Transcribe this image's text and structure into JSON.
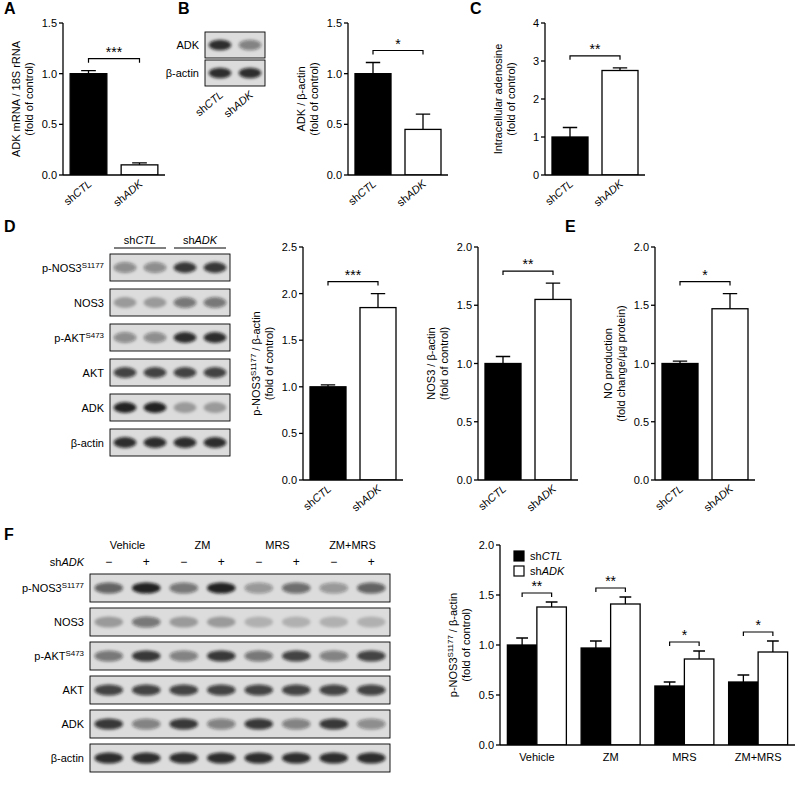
{
  "chart_data": [
    {
      "panel": "A",
      "type": "bar",
      "ylabel": [
        "ADK mRNA / 18S rRNA",
        "(fold of control)"
      ],
      "categories": [
        "shCTL",
        "shADK"
      ],
      "values": [
        1.0,
        0.1
      ],
      "errors": [
        0.03,
        0.02
      ],
      "colors": [
        "#000000",
        "#ffffff"
      ],
      "ylim": [
        0,
        1.5
      ],
      "yticks": [
        {
          "value": 0,
          "label": "0.0"
        },
        0.5,
        {
          "value": 1,
          "label": "1.0"
        },
        1.5
      ],
      "significance": "***"
    },
    {
      "panel": "B",
      "type": "bar",
      "ylabel": [
        "ADK / β-actin",
        "(fold of control)"
      ],
      "categories": [
        "shCTL",
        "shADK"
      ],
      "values": [
        1.0,
        0.45
      ],
      "errors": [
        0.11,
        0.15
      ],
      "colors": [
        "#000000",
        "#ffffff"
      ],
      "ylim": [
        0,
        1.5
      ],
      "yticks": [
        {
          "value": 0,
          "label": "0.0"
        },
        0.5,
        {
          "value": 1,
          "label": "1.0"
        },
        1.5
      ],
      "significance": "*"
    },
    {
      "panel": "C",
      "type": "bar",
      "ylabel": [
        "Intracellular adenosine",
        "(fold of control)"
      ],
      "categories": [
        "shCTL",
        "shADK"
      ],
      "values": [
        1.0,
        2.75
      ],
      "errors": [
        0.25,
        0.07
      ],
      "colors": [
        "#000000",
        "#ffffff"
      ],
      "ylim": [
        0,
        4
      ],
      "yticks": [
        0,
        1,
        2,
        3,
        4
      ],
      "significance": "**"
    },
    {
      "panel": "D",
      "type": "bar",
      "ylabel": [
        [
          "p-NOS3",
          {
            "sup": "S1177"
          },
          " / β-actin"
        ],
        "(fold of control)"
      ],
      "categories": [
        "shCTL",
        "shADK"
      ],
      "values": [
        1.0,
        1.85
      ],
      "errors": [
        0.02,
        0.15
      ],
      "colors": [
        "#000000",
        "#ffffff"
      ],
      "ylim": [
        0,
        2.5
      ],
      "yticks": [
        {
          "value": 0,
          "label": "0.0"
        },
        0.5,
        {
          "value": 1,
          "label": "1.0"
        },
        1.5,
        {
          "value": 2,
          "label": "2.0"
        },
        2.5
      ],
      "significance": "***"
    },
    {
      "type": "bar",
      "ylabel": [
        "NOS3 / β-actin",
        "(fold of control)"
      ],
      "categories": [
        "shCTL",
        "shADK"
      ],
      "values": [
        1.0,
        1.55
      ],
      "errors": [
        0.06,
        0.14
      ],
      "colors": [
        "#000000",
        "#ffffff"
      ],
      "ylim": [
        0,
        2
      ],
      "yticks": [
        {
          "value": 0,
          "label": "0.0"
        },
        0.5,
        {
          "value": 1,
          "label": "1.0"
        },
        1.5,
        {
          "value": 2,
          "label": "2.0"
        }
      ],
      "significance": "**"
    },
    {
      "panel": "E",
      "type": "bar",
      "ylabel": [
        "NO production",
        "(fold change/µg protein)"
      ],
      "categories": [
        "shCTL",
        "shADK"
      ],
      "values": [
        1.0,
        1.47
      ],
      "errors": [
        0.02,
        0.13
      ],
      "colors": [
        "#000000",
        "#ffffff"
      ],
      "ylim": [
        0,
        2
      ],
      "yticks": [
        {
          "value": 0,
          "label": "0.0"
        },
        0.5,
        {
          "value": 1,
          "label": "1.0"
        },
        1.5,
        {
          "value": 2,
          "label": "2.0"
        }
      ],
      "significance": "*"
    },
    {
      "panel": "F",
      "type": "bar",
      "ylabel": [
        [
          "p-NOS3",
          {
            "sup": "S1177"
          },
          " / β-actin"
        ],
        "(fold of control)"
      ],
      "categories": [
        "Vehicle",
        "ZM",
        "MRS",
        "ZM+MRS"
      ],
      "series": [
        {
          "name": "shCTL",
          "color": "#000000",
          "values": [
            1.0,
            0.97,
            0.59,
            0.63
          ],
          "errors": [
            0.07,
            0.07,
            0.04,
            0.07
          ]
        },
        {
          "name": "shADK",
          "color": "#ffffff",
          "values": [
            1.38,
            1.41,
            0.86,
            0.93
          ],
          "errors": [
            0.05,
            0.07,
            0.08,
            0.11
          ]
        }
      ],
      "ylim": [
        0,
        2
      ],
      "yticks": [
        {
          "value": 0,
          "label": "0.0"
        },
        0.5,
        {
          "value": 1,
          "label": "1.0"
        },
        1.5,
        {
          "value": 2,
          "label": "2.0"
        }
      ],
      "legend": "top-left",
      "significance": [
        "**",
        "**",
        "*",
        "*"
      ]
    }
  ],
  "blots": [
    {
      "lanes": [
        "shCTL",
        "shADK"
      ],
      "rows": [
        {
          "label": "ADK",
          "bands": [
            0.85,
            0.45
          ]
        },
        {
          "label": "β-actin",
          "bands": [
            0.85,
            0.85
          ]
        }
      ]
    },
    {
      "groups": [
        "shCTL",
        "shADK"
      ],
      "rows": [
        {
          "label": [
            "p-NOS3",
            {
              "sup": "S1177"
            }
          ],
          "bands": [
            0.4,
            0.4,
            0.8,
            0.8
          ]
        },
        {
          "label": "NOS3",
          "bands": [
            0.3,
            0.3,
            0.5,
            0.5
          ]
        },
        {
          "label": [
            "p-AKT",
            {
              "sup": "S473"
            }
          ],
          "bands": [
            0.4,
            0.4,
            0.85,
            0.85
          ]
        },
        {
          "label": "AKT",
          "bands": [
            0.75,
            0.75,
            0.75,
            0.75
          ]
        },
        {
          "label": "ADK",
          "bands": [
            0.9,
            0.9,
            0.3,
            0.3
          ]
        },
        {
          "label": "β-actin",
          "bands": [
            0.85,
            0.85,
            0.85,
            0.85
          ]
        }
      ]
    },
    {
      "groups": [
        "Vehicle",
        "ZM",
        "MRS",
        "ZM+MRS"
      ],
      "lane_header": {
        "label": "shADK",
        "values": [
          "−",
          "+",
          "−",
          "+",
          "−",
          "+",
          "−",
          "+"
        ]
      },
      "rows": [
        {
          "label": [
            "p-NOS3",
            {
              "sup": "S1177"
            }
          ],
          "bands": [
            0.6,
            0.9,
            0.5,
            0.9,
            0.35,
            0.55,
            0.35,
            0.6
          ]
        },
        {
          "label": "NOS3",
          "bands": [
            0.3,
            0.5,
            0.3,
            0.3,
            0.2,
            0.2,
            0.2,
            0.2
          ]
        },
        {
          "label": [
            "p-AKT",
            {
              "sup": "S473"
            }
          ],
          "bands": [
            0.5,
            0.8,
            0.45,
            0.8,
            0.5,
            0.75,
            0.45,
            0.75
          ]
        },
        {
          "label": "AKT",
          "bands": [
            0.75,
            0.75,
            0.75,
            0.75,
            0.75,
            0.75,
            0.75,
            0.75
          ]
        },
        {
          "label": "ADK",
          "bands": [
            0.8,
            0.45,
            0.8,
            0.45,
            0.8,
            0.45,
            0.8,
            0.4
          ]
        },
        {
          "label": "β-actin",
          "bands": [
            0.85,
            0.85,
            0.85,
            0.85,
            0.85,
            0.85,
            0.85,
            0.85
          ]
        }
      ]
    }
  ]
}
